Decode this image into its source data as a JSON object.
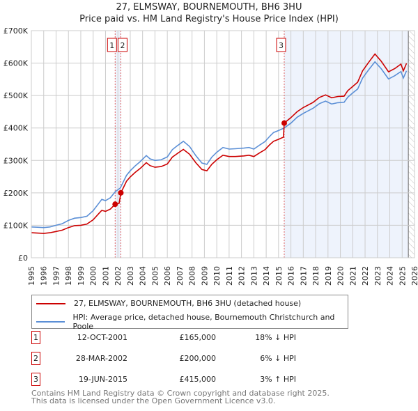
{
  "title": "27, ELMSWAY, BOURNEMOUTH, BH6 3HU",
  "subtitle": "Price paid vs. HM Land Registry's House Price Index (HPI)",
  "colors": {
    "property": "#cc0000",
    "hpi": "#5b8fd6",
    "shade": "#eef3fc"
  },
  "chart_data": {
    "type": "line",
    "title": "27, ELMSWAY, BOURNEMOUTH, BH6 3HU",
    "xlim": [
      1995,
      2026
    ],
    "ylim": [
      0,
      700000
    ],
    "grid": true,
    "y_ticks": [
      {
        "v": 0,
        "label": "£0"
      },
      {
        "v": 100000,
        "label": "£100K"
      },
      {
        "v": 200000,
        "label": "£200K"
      },
      {
        "v": 300000,
        "label": "£300K"
      },
      {
        "v": 400000,
        "label": "£400K"
      },
      {
        "v": 500000,
        "label": "£500K"
      },
      {
        "v": 600000,
        "label": "£600K"
      },
      {
        "v": 700000,
        "label": "£700K"
      }
    ],
    "x_ticks": [
      "1995",
      "1996",
      "1997",
      "1998",
      "1999",
      "2000",
      "2001",
      "2002",
      "2003",
      "2004",
      "2005",
      "2006",
      "2007",
      "2008",
      "2009",
      "2010",
      "2011",
      "2012",
      "2013",
      "2014",
      "2015",
      "2016",
      "2017",
      "2018",
      "2019",
      "2020",
      "2021",
      "2022",
      "2023",
      "2024",
      "2025",
      "2026"
    ],
    "shaded_from": 2015.46,
    "hatched_from": 2025.5,
    "series": [
      {
        "name": "27, ELMSWAY, BOURNEMOUTH, BH6 3HU (detached house)",
        "color": "#cc0000",
        "points": [
          [
            1995.0,
            77000
          ],
          [
            1995.5,
            76000
          ],
          [
            1996.0,
            75000
          ],
          [
            1996.5,
            77000
          ],
          [
            1997.0,
            81000
          ],
          [
            1997.5,
            85000
          ],
          [
            1998.0,
            93000
          ],
          [
            1998.5,
            99000
          ],
          [
            1999.0,
            100000
          ],
          [
            1999.5,
            104000
          ],
          [
            2000.0,
            117000
          ],
          [
            2000.5,
            138000
          ],
          [
            2000.7,
            146000
          ],
          [
            2001.0,
            143000
          ],
          [
            2001.4,
            150000
          ],
          [
            2001.78,
            165000
          ],
          [
            2002.1,
            168000
          ],
          [
            2002.24,
            200000
          ],
          [
            2002.7,
            236000
          ],
          [
            2003.0,
            249000
          ],
          [
            2003.4,
            263000
          ],
          [
            2003.8,
            275000
          ],
          [
            2004.3,
            293000
          ],
          [
            2004.6,
            284000
          ],
          [
            2005.0,
            279000
          ],
          [
            2005.5,
            281000
          ],
          [
            2006.0,
            289000
          ],
          [
            2006.4,
            310000
          ],
          [
            2006.8,
            321000
          ],
          [
            2007.3,
            334000
          ],
          [
            2007.8,
            319000
          ],
          [
            2008.3,
            293000
          ],
          [
            2008.8,
            272000
          ],
          [
            2009.2,
            268000
          ],
          [
            2009.6,
            288000
          ],
          [
            2010.0,
            302000
          ],
          [
            2010.5,
            316000
          ],
          [
            2011.0,
            312000
          ],
          [
            2011.5,
            312000
          ],
          [
            2012.2,
            314000
          ],
          [
            2012.6,
            316000
          ],
          [
            2013.0,
            312000
          ],
          [
            2013.5,
            324000
          ],
          [
            2013.9,
            333000
          ],
          [
            2014.3,
            349000
          ],
          [
            2014.6,
            359000
          ],
          [
            2015.0,
            365000
          ],
          [
            2015.4,
            372000
          ],
          [
            2015.46,
            415000
          ],
          [
            2016.0,
            432000
          ],
          [
            2016.5,
            450000
          ],
          [
            2017.0,
            463000
          ],
          [
            2017.8,
            479000
          ],
          [
            2018.3,
            494000
          ],
          [
            2018.8,
            502000
          ],
          [
            2019.3,
            493000
          ],
          [
            2019.8,
            497000
          ],
          [
            2020.3,
            498000
          ],
          [
            2020.6,
            515000
          ],
          [
            2021.0,
            528000
          ],
          [
            2021.4,
            541000
          ],
          [
            2021.8,
            576000
          ],
          [
            2022.3,
            603000
          ],
          [
            2022.8,
            628000
          ],
          [
            2023.3,
            606000
          ],
          [
            2023.9,
            573000
          ],
          [
            2024.4,
            583000
          ],
          [
            2024.9,
            597000
          ],
          [
            2025.1,
            576000
          ],
          [
            2025.35,
            599000
          ]
        ]
      },
      {
        "name": "HPI: Average price, detached house, Bournemouth Christchurch and Poole",
        "color": "#5b8fd6",
        "points": [
          [
            1995.0,
            95000
          ],
          [
            1995.5,
            94000
          ],
          [
            1996.0,
            93000
          ],
          [
            1996.5,
            95000
          ],
          [
            1997.0,
            100000
          ],
          [
            1997.5,
            105000
          ],
          [
            1998.0,
            115000
          ],
          [
            1998.5,
            122000
          ],
          [
            1999.0,
            124000
          ],
          [
            1999.5,
            128000
          ],
          [
            2000.0,
            145000
          ],
          [
            2000.5,
            170000
          ],
          [
            2000.7,
            180000
          ],
          [
            2001.0,
            176000
          ],
          [
            2001.4,
            185000
          ],
          [
            2001.8,
            204000
          ],
          [
            2002.2,
            215000
          ],
          [
            2002.7,
            254000
          ],
          [
            2003.0,
            268000
          ],
          [
            2003.4,
            283000
          ],
          [
            2003.8,
            296000
          ],
          [
            2004.3,
            315000
          ],
          [
            2004.6,
            305000
          ],
          [
            2005.0,
            300000
          ],
          [
            2005.5,
            302000
          ],
          [
            2006.0,
            311000
          ],
          [
            2006.4,
            333000
          ],
          [
            2006.8,
            345000
          ],
          [
            2007.3,
            359000
          ],
          [
            2007.8,
            343000
          ],
          [
            2008.3,
            315000
          ],
          [
            2008.8,
            292000
          ],
          [
            2009.2,
            288000
          ],
          [
            2009.6,
            310000
          ],
          [
            2010.0,
            325000
          ],
          [
            2010.5,
            340000
          ],
          [
            2011.0,
            335000
          ],
          [
            2011.5,
            336000
          ],
          [
            2012.2,
            338000
          ],
          [
            2012.6,
            340000
          ],
          [
            2013.0,
            335000
          ],
          [
            2013.5,
            348000
          ],
          [
            2013.9,
            358000
          ],
          [
            2014.3,
            375000
          ],
          [
            2014.6,
            386000
          ],
          [
            2015.0,
            392000
          ],
          [
            2015.46,
            400000
          ],
          [
            2016.0,
            415000
          ],
          [
            2016.5,
            433000
          ],
          [
            2017.0,
            445000
          ],
          [
            2017.8,
            461000
          ],
          [
            2018.3,
            475000
          ],
          [
            2018.8,
            483000
          ],
          [
            2019.3,
            474000
          ],
          [
            2019.8,
            478000
          ],
          [
            2020.3,
            479000
          ],
          [
            2020.6,
            495000
          ],
          [
            2021.0,
            508000
          ],
          [
            2021.4,
            520000
          ],
          [
            2021.8,
            554000
          ],
          [
            2022.3,
            580000
          ],
          [
            2022.8,
            604000
          ],
          [
            2023.3,
            583000
          ],
          [
            2023.9,
            551000
          ],
          [
            2024.4,
            561000
          ],
          [
            2024.9,
            574000
          ],
          [
            2025.1,
            554000
          ],
          [
            2025.35,
            576000
          ]
        ]
      }
    ],
    "sales": [
      {
        "label": "1",
        "x": 2001.78,
        "value": 165000
      },
      {
        "label": "2",
        "x": 2002.24,
        "value": 200000
      },
      {
        "label": "3",
        "x": 2015.46,
        "value": 415000
      }
    ]
  },
  "legend": {
    "property": "27, ELMSWAY, BOURNEMOUTH, BH6 3HU (detached house)",
    "hpi": "HPI: Average price, detached house, Bournemouth Christchurch and Poole"
  },
  "transactions": [
    {
      "num": "1",
      "date": "12-OCT-2001",
      "price": "£165,000",
      "hpi": "18% ↓ HPI"
    },
    {
      "num": "2",
      "date": "28-MAR-2002",
      "price": "£200,000",
      "hpi": "6% ↓ HPI"
    },
    {
      "num": "3",
      "date": "19-JUN-2015",
      "price": "£415,000",
      "hpi": "3% ↑ HPI"
    }
  ],
  "footer": {
    "line1": "Contains HM Land Registry data © Crown copyright and database right 2025.",
    "line2": "This data is licensed under the Open Government Licence v3.0."
  }
}
